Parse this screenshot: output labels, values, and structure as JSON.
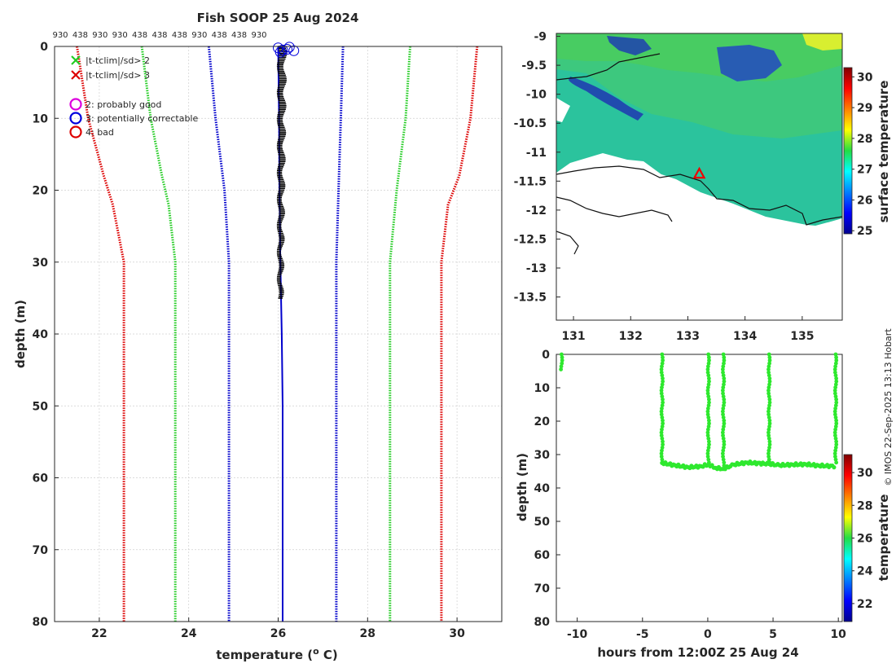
{
  "chart_data": [
    {
      "type": "line",
      "title": "Fish SOOP 25 Aug 2024",
      "xlabel": "temperature (",
      "xlabel_sup": "o",
      "xlabel_end": " C)",
      "ylabel": "depth (m)",
      "xlim": [
        21,
        31
      ],
      "ylim": [
        80,
        0
      ],
      "xticks": [
        22,
        24,
        26,
        28,
        30
      ],
      "yticks": [
        0,
        10,
        20,
        30,
        40,
        50,
        60,
        70,
        80
      ],
      "top_ids": [
        "930",
        "438",
        "930",
        "930",
        "438",
        "438",
        "438",
        "930",
        "438",
        "438",
        "930"
      ],
      "legend": [
        {
          "marker": "x",
          "color": "#22cc22",
          "label": "|t-tclim|/sd> 2"
        },
        {
          "marker": "x",
          "color": "#dd0000",
          "label": "|t-tclim|/sd> 3"
        },
        {
          "marker": "o",
          "color": "#dd00dd",
          "label": "2: probably good"
        },
        {
          "marker": "o",
          "color": "#0000dd",
          "label": "3: potentially correctable"
        },
        {
          "marker": "o",
          "color": "#dd0000",
          "label": "4: bad"
        }
      ],
      "series": [
        {
          "name": "clim -3sd",
          "color": "#dd0000",
          "depth": [
            0,
            10,
            18,
            22,
            30,
            40,
            50,
            60,
            70,
            80
          ],
          "temp": [
            21.5,
            21.75,
            22.1,
            22.3,
            22.55,
            22.55,
            22.55,
            22.55,
            22.55,
            22.55
          ]
        },
        {
          "name": "clim -2sd",
          "color": "#22cc22",
          "depth": [
            0,
            10,
            18,
            22,
            30,
            40,
            50,
            60,
            70,
            80
          ],
          "temp": [
            22.95,
            23.15,
            23.4,
            23.55,
            23.7,
            23.7,
            23.7,
            23.7,
            23.7,
            23.7
          ]
        },
        {
          "name": "clim -1sd",
          "color": "#0000cc",
          "depth": [
            0,
            10,
            20,
            30,
            40,
            50,
            60,
            70,
            80
          ],
          "temp": [
            24.45,
            24.6,
            24.8,
            24.9,
            24.9,
            24.9,
            24.9,
            24.9,
            24.9
          ]
        },
        {
          "name": "clim +1sd",
          "color": "#0000cc",
          "depth": [
            0,
            10,
            20,
            30,
            40,
            50,
            60,
            70,
            80
          ],
          "temp": [
            27.45,
            27.4,
            27.35,
            27.3,
            27.3,
            27.3,
            27.3,
            27.3,
            27.3
          ]
        },
        {
          "name": "clim +2sd",
          "color": "#22cc22",
          "depth": [
            0,
            10,
            20,
            30,
            40,
            50,
            60,
            70,
            80
          ],
          "temp": [
            28.95,
            28.85,
            28.65,
            28.5,
            28.5,
            28.5,
            28.5,
            28.5,
            28.5
          ]
        },
        {
          "name": "clim +3sd",
          "color": "#dd0000",
          "depth": [
            0,
            10,
            18,
            22,
            30,
            40,
            50,
            60,
            70,
            80
          ],
          "temp": [
            30.45,
            30.3,
            30.05,
            29.8,
            29.65,
            29.65,
            29.65,
            29.65,
            29.65,
            29.65
          ]
        },
        {
          "name": "mean",
          "color": "#0000cc",
          "solid": true,
          "depth": [
            0,
            10,
            20,
            30,
            40,
            50,
            60,
            70,
            80
          ],
          "temp": [
            26.0,
            26.02,
            26.03,
            26.05,
            26.08,
            26.1,
            26.1,
            26.1,
            26.1
          ]
        }
      ],
      "profile_band": {
        "depth_top": 0,
        "depth_bottom": 35,
        "temp_min": 25.95,
        "temp_max": 26.25
      },
      "flag_circles": [
        [
          26.0,
          0.2
        ],
        [
          26.1,
          0.5
        ],
        [
          26.2,
          0.4
        ],
        [
          26.35,
          0.6
        ],
        [
          26.05,
          0.8
        ],
        [
          26.25,
          0.1
        ]
      ]
    },
    {
      "type": "heatmap",
      "subtype": "map",
      "xlim": [
        130.7,
        135.7
      ],
      "ylim": [
        -13.9,
        -8.95
      ],
      "xticks": [
        131,
        132,
        133,
        134,
        135
      ],
      "yticks": [
        -9,
        -9.5,
        -10,
        -10.5,
        -11,
        -11.5,
        -12,
        -12.5,
        -13,
        -13.5
      ],
      "marker": {
        "lon": 133.2,
        "lat": -11.37
      },
      "colorbar": {
        "label": "surface temperature",
        "range": [
          24.9,
          30.3
        ],
        "ticks": [
          25,
          26,
          27,
          28,
          29,
          30
        ]
      }
    },
    {
      "type": "scatter",
      "xlabel": "hours from 12:00Z 25 Aug 24",
      "ylabel": "depth (m)",
      "xlim": [
        -11.6,
        10.3
      ],
      "ylim": [
        80,
        0
      ],
      "xticks": [
        -10,
        -5,
        0,
        5,
        10
      ],
      "yticks": [
        0,
        10,
        20,
        30,
        40,
        50,
        60,
        70,
        80
      ],
      "dives": [
        {
          "t": -11.2,
          "d_top": 0,
          "d_bottom": 5
        },
        {
          "t": -3.5,
          "d_top": 0,
          "d_bottom": 33
        },
        {
          "t": 0.05,
          "d_top": 0,
          "d_bottom": 33
        },
        {
          "t": 1.2,
          "d_top": 0,
          "d_bottom": 34
        },
        {
          "t": 4.7,
          "d_top": 0,
          "d_bottom": 33
        },
        {
          "t": 9.8,
          "d_top": 0,
          "d_bottom": 33
        }
      ],
      "seafloor": [
        [
          -3.5,
          32.5
        ],
        [
          -2.5,
          33.2
        ],
        [
          -1.5,
          33.8
        ],
        [
          -0.5,
          33.5
        ],
        [
          0.05,
          33.0
        ],
        [
          0.6,
          34.0
        ],
        [
          1.2,
          34.3
        ],
        [
          2,
          33.0
        ],
        [
          3,
          32.4
        ],
        [
          4.7,
          32.8
        ],
        [
          5.5,
          33.2
        ],
        [
          6.5,
          33.0
        ],
        [
          7.5,
          32.9
        ],
        [
          8.5,
          33.3
        ],
        [
          9.8,
          33.5
        ]
      ],
      "colorbar": {
        "label": "temperature",
        "range": [
          20.9,
          31.1
        ],
        "ticks": [
          22,
          24,
          26,
          28,
          30
        ]
      }
    }
  ],
  "credit": "© IMOS 22-Sep-2025 13:13 Hobart"
}
